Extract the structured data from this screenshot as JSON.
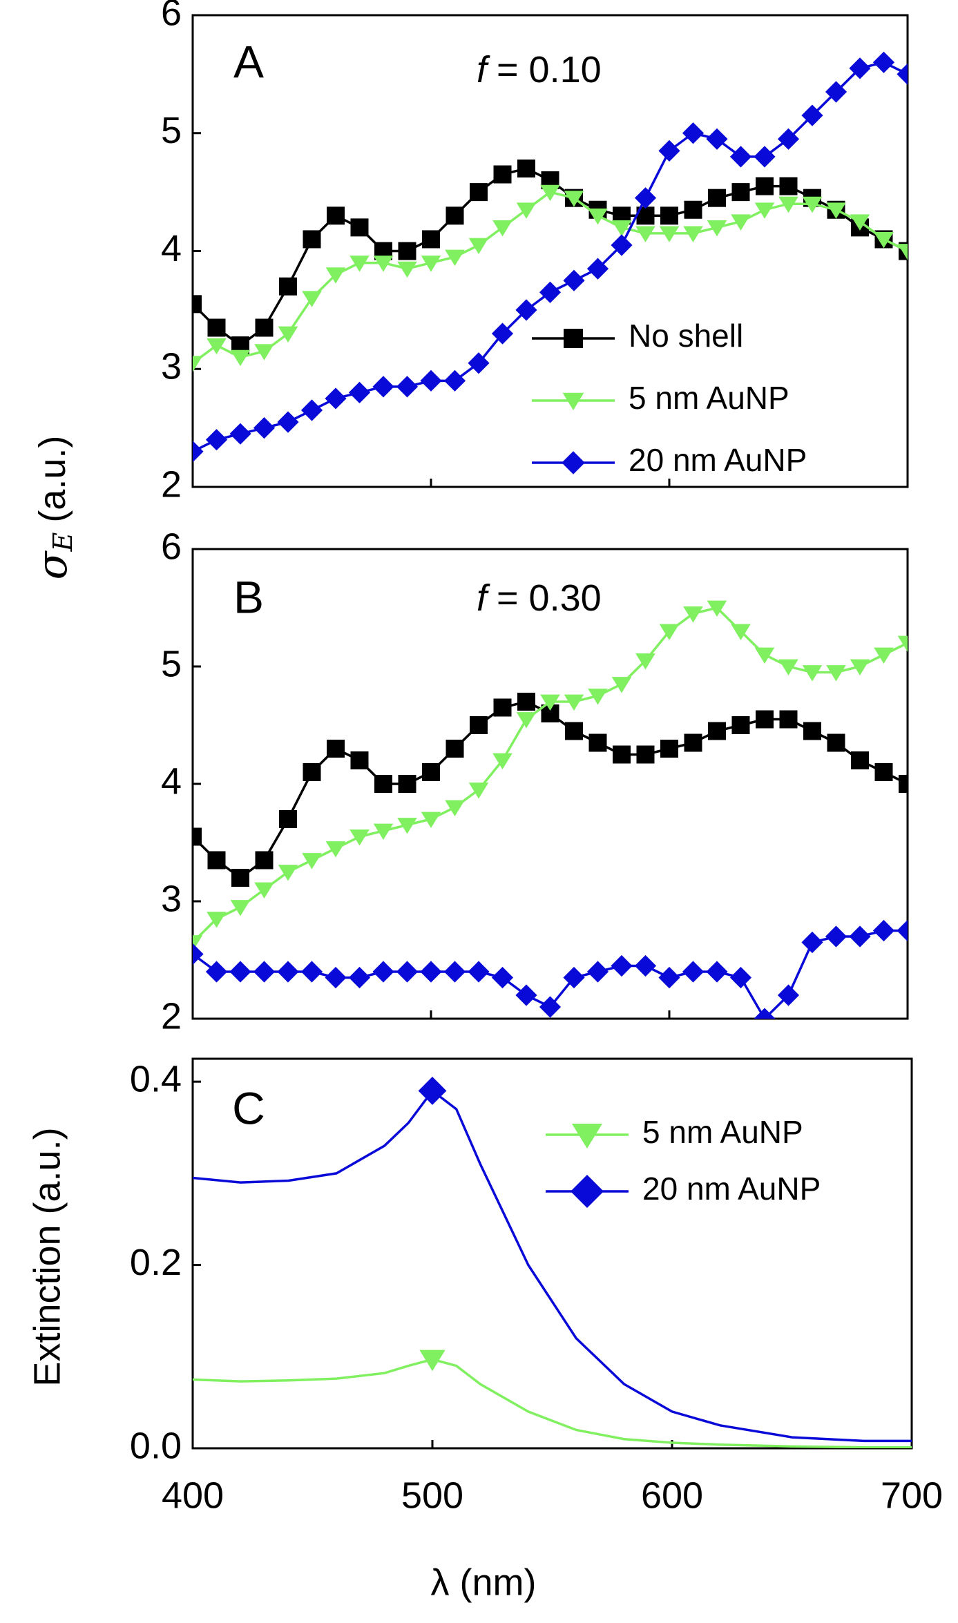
{
  "chart_data": [
    {
      "type": "line",
      "panel": "A",
      "annotation": {
        "var": "f",
        "text": "= 0.10"
      },
      "ylabel": {
        "symbol": "σ",
        "subscript": "E",
        "unit": "(a.u.)"
      },
      "xlim": [
        400,
        700
      ],
      "xticks": [
        400,
        500,
        600,
        700
      ],
      "show_xtick_labels": false,
      "ylim": [
        2,
        6
      ],
      "yticks": [
        2,
        3,
        4,
        5,
        6
      ],
      "legend": "lower right",
      "x": [
        400,
        410,
        420,
        430,
        440,
        450,
        460,
        470,
        480,
        490,
        500,
        510,
        520,
        530,
        540,
        550,
        560,
        570,
        580,
        590,
        600,
        610,
        620,
        630,
        640,
        650,
        660,
        670,
        680,
        690,
        700
      ],
      "series": [
        {
          "name": "No shell",
          "color": "#000000",
          "marker": "square",
          "values": [
            3.55,
            3.35,
            3.2,
            3.35,
            3.7,
            4.1,
            4.3,
            4.2,
            4.0,
            4.0,
            4.1,
            4.3,
            4.5,
            4.65,
            4.7,
            4.6,
            4.45,
            4.35,
            4.3,
            4.3,
            4.3,
            4.35,
            4.45,
            4.5,
            4.55,
            4.55,
            4.45,
            4.35,
            4.2,
            4.1,
            4.0
          ]
        },
        {
          "name": "5 nm AuNP",
          "color": "#80f060",
          "marker": "triangle-down",
          "values": [
            3.05,
            3.2,
            3.1,
            3.15,
            3.3,
            3.6,
            3.8,
            3.9,
            3.9,
            3.85,
            3.9,
            3.95,
            4.05,
            4.2,
            4.35,
            4.5,
            4.45,
            4.3,
            4.2,
            4.15,
            4.15,
            4.15,
            4.2,
            4.25,
            4.35,
            4.4,
            4.4,
            4.35,
            4.25,
            4.1,
            4.0
          ]
        },
        {
          "name": "20 nm AuNP",
          "color": "#0a0ad8",
          "marker": "diamond",
          "values": [
            2.3,
            2.4,
            2.45,
            2.5,
            2.55,
            2.65,
            2.75,
            2.8,
            2.85,
            2.85,
            2.9,
            2.9,
            3.05,
            3.3,
            3.5,
            3.65,
            3.75,
            3.85,
            4.05,
            4.45,
            4.85,
            5.0,
            4.95,
            4.8,
            4.8,
            4.95,
            5.15,
            5.35,
            5.55,
            5.6,
            5.5
          ]
        }
      ]
    },
    {
      "type": "line",
      "panel": "B",
      "annotation": {
        "var": "f",
        "text": "= 0.30"
      },
      "xlim": [
        400,
        700
      ],
      "xticks": [
        400,
        500,
        600,
        700
      ],
      "show_xtick_labels": false,
      "ylim": [
        2,
        6
      ],
      "yticks": [
        2,
        3,
        4,
        5,
        6
      ],
      "x": [
        400,
        410,
        420,
        430,
        440,
        450,
        460,
        470,
        480,
        490,
        500,
        510,
        520,
        530,
        540,
        550,
        560,
        570,
        580,
        590,
        600,
        610,
        620,
        630,
        640,
        650,
        660,
        670,
        680,
        690,
        700
      ],
      "series": [
        {
          "color": "#000000",
          "marker": "square",
          "values": [
            3.55,
            3.35,
            3.2,
            3.35,
            3.7,
            4.1,
            4.3,
            4.2,
            4.0,
            4.0,
            4.1,
            4.3,
            4.5,
            4.65,
            4.7,
            4.6,
            4.45,
            4.35,
            4.25,
            4.25,
            4.3,
            4.35,
            4.45,
            4.5,
            4.55,
            4.55,
            4.45,
            4.35,
            4.2,
            4.1,
            4.0
          ]
        },
        {
          "color": "#80f060",
          "marker": "triangle-down",
          "values": [
            2.65,
            2.85,
            2.95,
            3.1,
            3.25,
            3.35,
            3.45,
            3.55,
            3.6,
            3.65,
            3.7,
            3.8,
            3.95,
            4.2,
            4.55,
            4.7,
            4.7,
            4.75,
            4.85,
            5.05,
            5.3,
            5.45,
            5.5,
            5.3,
            5.1,
            5.0,
            4.95,
            4.95,
            5.0,
            5.1,
            5.2
          ]
        },
        {
          "color": "#0a0ad8",
          "marker": "diamond",
          "values": [
            2.55,
            2.4,
            2.4,
            2.4,
            2.4,
            2.4,
            2.35,
            2.35,
            2.4,
            2.4,
            2.4,
            2.4,
            2.4,
            2.35,
            2.2,
            2.1,
            2.35,
            2.4,
            2.45,
            2.45,
            2.35,
            2.4,
            2.4,
            2.35,
            2.0,
            2.2,
            2.65,
            2.7,
            2.7,
            2.75,
            2.75
          ]
        }
      ]
    },
    {
      "type": "line",
      "panel": "C",
      "ylabel": "Extinction (a.u.)",
      "xlabel": "λ (nm)",
      "xlim": [
        400,
        700
      ],
      "xticks": [
        400,
        500,
        600,
        700
      ],
      "show_xtick_labels": true,
      "ylim": [
        0,
        0.425
      ],
      "yticks": [
        {
          "value": 0,
          "label": "0.0"
        },
        {
          "value": 0.2,
          "label": "0.2"
        },
        {
          "value": 0.4,
          "label": "0.4"
        }
      ],
      "legend": "upper right",
      "marker_at_peak": true,
      "x": [
        400,
        420,
        440,
        460,
        480,
        490,
        500,
        510,
        520,
        540,
        560,
        580,
        600,
        620,
        650,
        680,
        700
      ],
      "series": [
        {
          "name": "5 nm AuNP",
          "color": "#80f060",
          "marker": "triangle-down",
          "values": [
            0.075,
            0.073,
            0.074,
            0.076,
            0.082,
            0.09,
            0.097,
            0.09,
            0.07,
            0.04,
            0.02,
            0.01,
            0.006,
            0.004,
            0.002,
            0.001,
            0.001
          ]
        },
        {
          "name": "20 nm AuNP",
          "color": "#0a0ad8",
          "marker": "diamond",
          "values": [
            0.295,
            0.29,
            0.292,
            0.3,
            0.33,
            0.355,
            0.39,
            0.37,
            0.31,
            0.2,
            0.12,
            0.07,
            0.04,
            0.025,
            0.012,
            0.008,
            0.008
          ]
        }
      ]
    }
  ]
}
